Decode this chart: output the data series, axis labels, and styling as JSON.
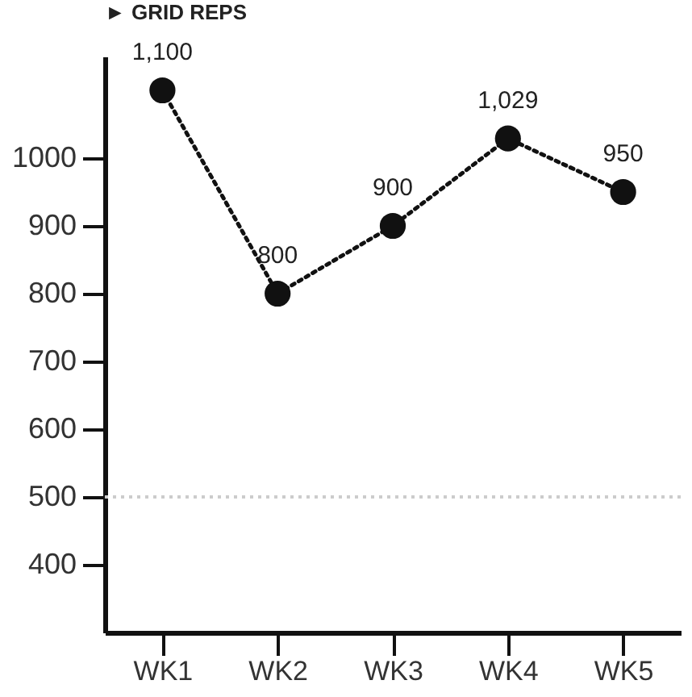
{
  "chart_data": {
    "type": "line",
    "title": "► GRID REPS",
    "categories": [
      "WK1",
      "WK2",
      "WK3",
      "WK4",
      "WK5"
    ],
    "series": [
      {
        "color": "#111111",
        "values": [
          1100,
          800,
          900,
          1029,
          950
        ],
        "value_labels": [
          "1,100",
          "800",
          "900",
          "1,029",
          "950"
        ]
      }
    ],
    "ylim": [
      300,
      1150
    ],
    "yticks": [
      400,
      500,
      600,
      700,
      800,
      900,
      1000
    ],
    "ref_lines": [
      {
        "axis": "y",
        "value": 500,
        "color": "#cccccc",
        "line_style": "dotted"
      }
    ],
    "grid": false,
    "marker": "circle",
    "line_style": "dotted"
  }
}
